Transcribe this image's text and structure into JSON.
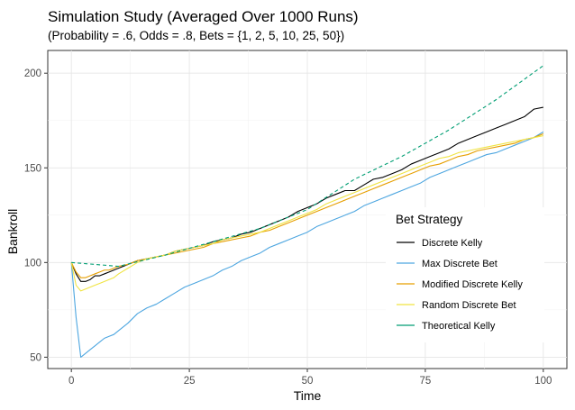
{
  "chart_data": {
    "type": "line",
    "title": "Simulation Study (Averaged Over 1000 Runs)",
    "subtitle": "(Probability = .6, Odds = .8, Bets = {1, 2, 5, 10, 25, 50})",
    "xlabel": "Time",
    "ylabel": "Bankroll",
    "xlim": [
      -5,
      105
    ],
    "ylim": [
      44,
      212
    ],
    "x_ticks": [
      0,
      25,
      50,
      75,
      100
    ],
    "y_ticks": [
      50,
      100,
      150,
      200
    ],
    "grid": true,
    "legend": {
      "title": "Bet Strategy",
      "position": "right-inside"
    },
    "series": [
      {
        "name": "Discrete Kelly",
        "color": "#000000",
        "dash": "solid",
        "points": [
          [
            0,
            100
          ],
          [
            1,
            94
          ],
          [
            2,
            90
          ],
          [
            3,
            90
          ],
          [
            4,
            91
          ],
          [
            5,
            93
          ],
          [
            6,
            93
          ],
          [
            7,
            94
          ],
          [
            8,
            95
          ],
          [
            9,
            96
          ],
          [
            10,
            97
          ],
          [
            12,
            99
          ],
          [
            14,
            101
          ],
          [
            16,
            102
          ],
          [
            18,
            103
          ],
          [
            20,
            104
          ],
          [
            22,
            106
          ],
          [
            24,
            107
          ],
          [
            26,
            108
          ],
          [
            28,
            109
          ],
          [
            30,
            111
          ],
          [
            32,
            112
          ],
          [
            34,
            113
          ],
          [
            36,
            115
          ],
          [
            38,
            116
          ],
          [
            40,
            118
          ],
          [
            42,
            120
          ],
          [
            44,
            122
          ],
          [
            46,
            124
          ],
          [
            48,
            127
          ],
          [
            50,
            129
          ],
          [
            52,
            131
          ],
          [
            54,
            134
          ],
          [
            56,
            136
          ],
          [
            58,
            138
          ],
          [
            60,
            138
          ],
          [
            62,
            141
          ],
          [
            64,
            144
          ],
          [
            66,
            145
          ],
          [
            68,
            147
          ],
          [
            70,
            149
          ],
          [
            72,
            152
          ],
          [
            74,
            154
          ],
          [
            76,
            156
          ],
          [
            78,
            158
          ],
          [
            80,
            160
          ],
          [
            82,
            163
          ],
          [
            84,
            165
          ],
          [
            86,
            167
          ],
          [
            88,
            169
          ],
          [
            90,
            171
          ],
          [
            92,
            173
          ],
          [
            94,
            175
          ],
          [
            96,
            177
          ],
          [
            98,
            181
          ],
          [
            100,
            182
          ]
        ]
      },
      {
        "name": "Max Discrete Bet",
        "color": "#4da6e0",
        "dash": "solid",
        "points": [
          [
            0,
            100
          ],
          [
            1,
            71
          ],
          [
            2,
            50
          ],
          [
            3,
            52
          ],
          [
            4,
            54
          ],
          [
            5,
            56
          ],
          [
            6,
            58
          ],
          [
            7,
            60
          ],
          [
            8,
            61
          ],
          [
            9,
            62
          ],
          [
            10,
            64
          ],
          [
            12,
            68
          ],
          [
            14,
            73
          ],
          [
            16,
            76
          ],
          [
            18,
            78
          ],
          [
            20,
            81
          ],
          [
            22,
            84
          ],
          [
            24,
            87
          ],
          [
            26,
            89
          ],
          [
            28,
            91
          ],
          [
            30,
            93
          ],
          [
            32,
            96
          ],
          [
            34,
            98
          ],
          [
            36,
            101
          ],
          [
            38,
            103
          ],
          [
            40,
            105
          ],
          [
            42,
            108
          ],
          [
            44,
            110
          ],
          [
            46,
            112
          ],
          [
            48,
            114
          ],
          [
            50,
            116
          ],
          [
            52,
            119
          ],
          [
            54,
            121
          ],
          [
            56,
            123
          ],
          [
            58,
            125
          ],
          [
            60,
            127
          ],
          [
            62,
            130
          ],
          [
            64,
            132
          ],
          [
            66,
            134
          ],
          [
            68,
            136
          ],
          [
            70,
            138
          ],
          [
            72,
            140
          ],
          [
            74,
            142
          ],
          [
            76,
            145
          ],
          [
            78,
            147
          ],
          [
            80,
            149
          ],
          [
            82,
            151
          ],
          [
            84,
            153
          ],
          [
            86,
            155
          ],
          [
            88,
            157
          ],
          [
            90,
            158
          ],
          [
            92,
            160
          ],
          [
            94,
            162
          ],
          [
            96,
            164
          ],
          [
            98,
            166
          ],
          [
            100,
            169
          ]
        ]
      },
      {
        "name": "Modified Discrete Kelly",
        "color": "#e69f00",
        "dash": "solid",
        "points": [
          [
            0,
            100
          ],
          [
            1,
            95
          ],
          [
            2,
            92
          ],
          [
            3,
            92
          ],
          [
            4,
            93
          ],
          [
            5,
            94
          ],
          [
            6,
            95
          ],
          [
            7,
            96
          ],
          [
            8,
            96
          ],
          [
            9,
            97
          ],
          [
            10,
            98
          ],
          [
            12,
            99
          ],
          [
            14,
            101
          ],
          [
            16,
            102
          ],
          [
            18,
            103
          ],
          [
            20,
            104
          ],
          [
            22,
            105
          ],
          [
            24,
            106
          ],
          [
            26,
            107
          ],
          [
            28,
            108
          ],
          [
            30,
            110
          ],
          [
            32,
            111
          ],
          [
            34,
            112
          ],
          [
            36,
            113
          ],
          [
            38,
            114
          ],
          [
            40,
            116
          ],
          [
            42,
            117
          ],
          [
            44,
            119
          ],
          [
            46,
            121
          ],
          [
            48,
            123
          ],
          [
            50,
            125
          ],
          [
            52,
            127
          ],
          [
            54,
            129
          ],
          [
            56,
            131
          ],
          [
            58,
            133
          ],
          [
            60,
            135
          ],
          [
            62,
            137
          ],
          [
            64,
            139
          ],
          [
            66,
            141
          ],
          [
            68,
            143
          ],
          [
            70,
            145
          ],
          [
            72,
            147
          ],
          [
            74,
            149
          ],
          [
            76,
            151
          ],
          [
            78,
            152
          ],
          [
            80,
            154
          ],
          [
            82,
            156
          ],
          [
            84,
            157
          ],
          [
            86,
            159
          ],
          [
            88,
            160
          ],
          [
            90,
            161
          ],
          [
            92,
            162
          ],
          [
            94,
            163
          ],
          [
            96,
            165
          ],
          [
            98,
            166
          ],
          [
            100,
            168
          ]
        ]
      },
      {
        "name": "Random Discrete Bet",
        "color": "#f0e442",
        "dash": "solid",
        "points": [
          [
            0,
            100
          ],
          [
            1,
            88
          ],
          [
            2,
            85
          ],
          [
            3,
            86
          ],
          [
            4,
            87
          ],
          [
            5,
            88
          ],
          [
            6,
            89
          ],
          [
            7,
            90
          ],
          [
            8,
            91
          ],
          [
            9,
            92
          ],
          [
            10,
            94
          ],
          [
            12,
            97
          ],
          [
            14,
            100
          ],
          [
            16,
            102
          ],
          [
            18,
            103
          ],
          [
            20,
            104
          ],
          [
            22,
            106
          ],
          [
            24,
            107
          ],
          [
            26,
            108
          ],
          [
            28,
            109
          ],
          [
            30,
            110
          ],
          [
            32,
            112
          ],
          [
            34,
            113
          ],
          [
            36,
            114
          ],
          [
            38,
            115
          ],
          [
            40,
            116
          ],
          [
            42,
            118
          ],
          [
            44,
            120
          ],
          [
            46,
            122
          ],
          [
            48,
            124
          ],
          [
            50,
            126
          ],
          [
            52,
            128
          ],
          [
            54,
            131
          ],
          [
            56,
            133
          ],
          [
            58,
            135
          ],
          [
            60,
            137
          ],
          [
            62,
            139
          ],
          [
            64,
            141
          ],
          [
            66,
            143
          ],
          [
            68,
            145
          ],
          [
            70,
            147
          ],
          [
            72,
            149
          ],
          [
            74,
            151
          ],
          [
            76,
            153
          ],
          [
            78,
            155
          ],
          [
            80,
            156
          ],
          [
            82,
            158
          ],
          [
            84,
            159
          ],
          [
            86,
            160
          ],
          [
            88,
            161
          ],
          [
            90,
            162
          ],
          [
            92,
            163
          ],
          [
            94,
            164
          ],
          [
            96,
            165
          ],
          [
            98,
            166
          ],
          [
            100,
            167
          ]
        ]
      },
      {
        "name": "Theoretical Kelly",
        "color": "#009e73",
        "dash": "dashed",
        "points": [
          [
            0,
            100
          ],
          [
            10,
            98
          ],
          [
            20,
            104
          ],
          [
            30,
            111
          ],
          [
            40,
            118
          ],
          [
            50,
            128
          ],
          [
            60,
            144
          ],
          [
            70,
            156
          ],
          [
            80,
            170
          ],
          [
            90,
            186
          ],
          [
            100,
            204
          ]
        ]
      }
    ]
  }
}
